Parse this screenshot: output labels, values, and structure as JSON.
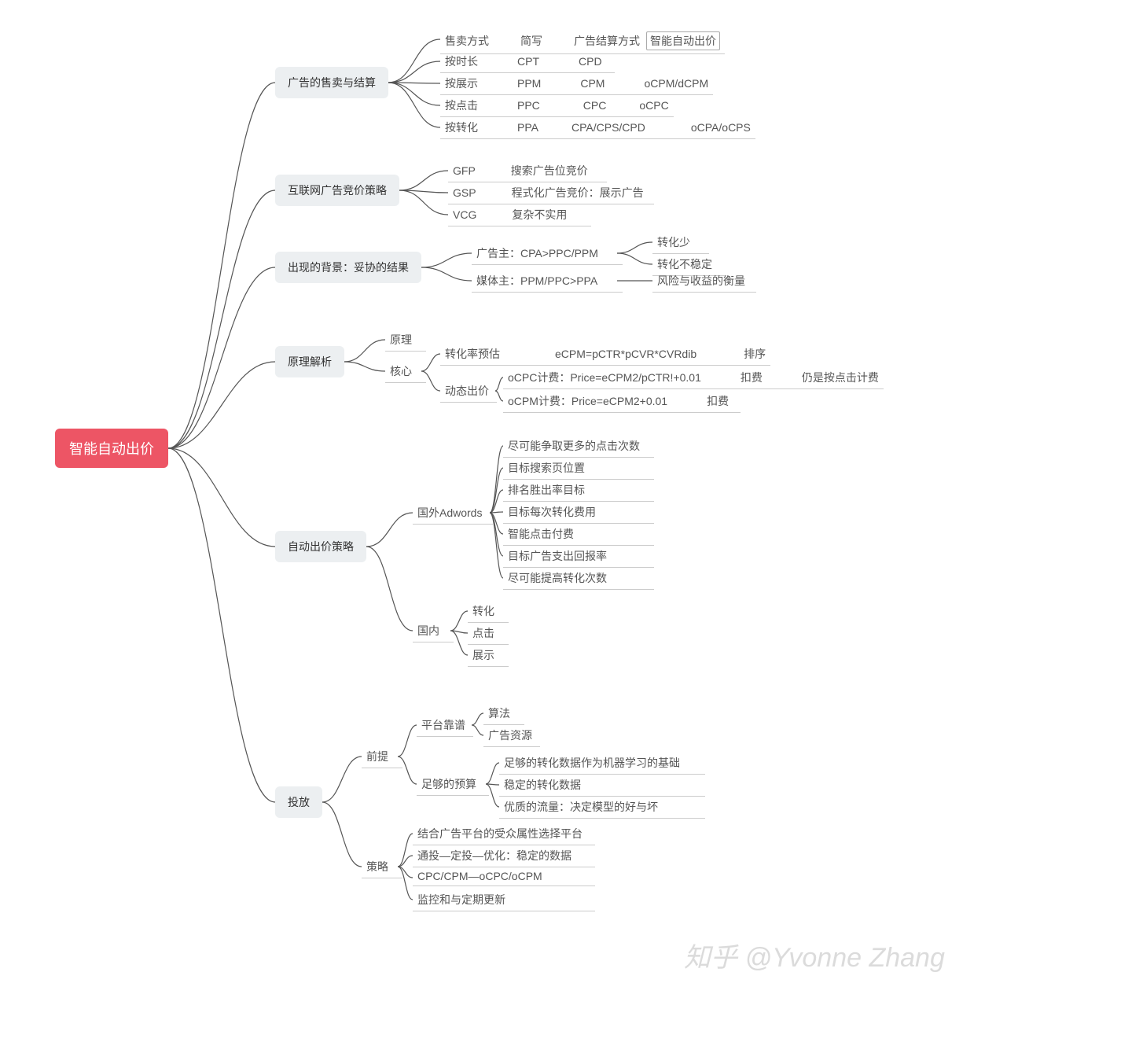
{
  "type": "mindmap",
  "colors": {
    "root_bg": "#ed5565",
    "root_fg": "#ffffff",
    "box_bg": "#eceff1",
    "box_fg": "#333333",
    "leaf_underline": "#cccccc",
    "edge": "#555555",
    "bg": "#ffffff",
    "watermark": "#cccccc"
  },
  "font": {
    "family": "PingFang SC / Microsoft YaHei",
    "root_size": 18,
    "box_size": 14,
    "leaf_size": 14
  },
  "root": {
    "label": "智能自动出价"
  },
  "branches": [
    {
      "label": "广告的售卖与结算",
      "rows": [
        {
          "cells": [
            "售卖方式",
            "简写",
            "广告结算方式"
          ],
          "trailing_boxed": "智能自动出价"
        },
        {
          "cells": [
            "按时长",
            "CPT",
            "CPD"
          ]
        },
        {
          "cells": [
            "按展示",
            "PPM",
            "CPM",
            "oCPM/dCPM"
          ]
        },
        {
          "cells": [
            "按点击",
            "PPC",
            "CPC",
            "oCPC"
          ]
        },
        {
          "cells": [
            "按转化",
            "PPA",
            "CPA/CPS/CPD",
            "oCPA/oCPS"
          ]
        }
      ]
    },
    {
      "label": "互联网广告竞价策略",
      "rows": [
        {
          "cells": [
            "GFP",
            "搜索广告位竞价"
          ]
        },
        {
          "cells": [
            "GSP",
            "程式化广告竞价：展示广告"
          ]
        },
        {
          "cells": [
            "VCG",
            "复杂不实用"
          ]
        }
      ]
    },
    {
      "label": "出现的背景：妥协的结果",
      "children": [
        {
          "row": "广告主：CPA>PPC/PPM",
          "sub": [
            "转化少",
            "转化不稳定"
          ]
        },
        {
          "row": "媒体主：PPM/PPC>PPA",
          "sub": [
            "风险与收益的衡量"
          ]
        }
      ]
    },
    {
      "label": "原理解析",
      "children": [
        {
          "label": "原理"
        },
        {
          "label": "核心",
          "children": [
            {
              "row": [
                "转化率预估",
                "eCPM=pCTR*pCVR*CVRdib",
                "排序"
              ]
            },
            {
              "label": "动态出价",
              "rows": [
                [
                  "oCPC计费：Price=eCPM2/pCTR!+0.01",
                  "扣费",
                  "仍是按点击计费"
                ],
                [
                  "oCPM计费：Price=eCPM2+0.01",
                  "扣费"
                ]
              ]
            }
          ]
        }
      ]
    },
    {
      "label": "自动出价策略",
      "children": [
        {
          "label": "国外Adwords",
          "items": [
            "尽可能争取更多的点击次数",
            "目标搜索页位置",
            "排名胜出率目标",
            "目标每次转化费用",
            "智能点击付费",
            "目标广告支出回报率",
            "尽可能提高转化次数"
          ]
        },
        {
          "label": "国内",
          "items": [
            "转化",
            "点击",
            "展示"
          ]
        }
      ]
    },
    {
      "label": "投放",
      "children": [
        {
          "label": "前提",
          "children": [
            {
              "label": "平台靠谱",
              "items": [
                "算法",
                "广告资源"
              ]
            },
            {
              "label": "足够的预算",
              "items": [
                "足够的转化数据作为机器学习的基础",
                "稳定的转化数据",
                "优质的流量：决定模型的好与坏"
              ]
            }
          ]
        },
        {
          "label": "策略",
          "items": [
            "结合广告平台的受众属性选择平台",
            "通投—定投—优化：稳定的数据",
            "CPC/CPM—oCPC/oCPM",
            "监控和与定期更新"
          ]
        }
      ]
    }
  ],
  "watermark": "知乎 @Yvonne Zhang"
}
